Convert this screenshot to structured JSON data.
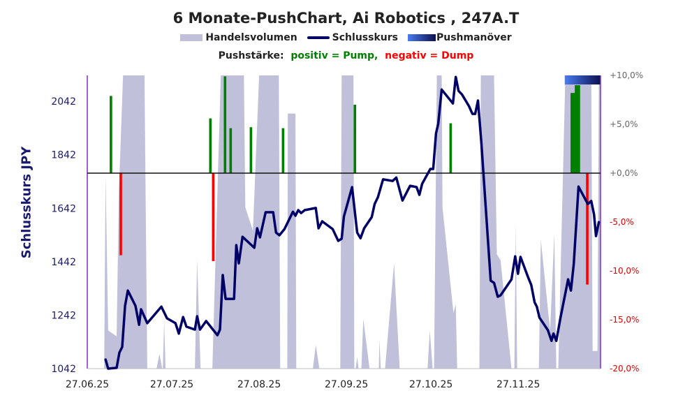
{
  "chart_data": {
    "type": "line",
    "title": "6 Monate-PushChart, Ai Robotics , 247A.T",
    "legend": {
      "volume": "Handelsvolumen",
      "close": "Schlusskurs",
      "push": "Pushmanöver"
    },
    "push_legend": {
      "label": "Pushstärke:",
      "positive": "positiv = Pump,",
      "negative": "negativ = Dump"
    },
    "ylabel": "Schlusskurs JPY",
    "x_unit": "days since 27.06.25",
    "xlim": [
      0,
      182.2
    ],
    "x_ticks": [
      {
        "day": 0,
        "label": "27.06.25"
      },
      {
        "day": 30,
        "label": "27.07.25"
      },
      {
        "day": 61,
        "label": "27.08.25"
      },
      {
        "day": 92,
        "label": "27.09.25"
      },
      {
        "day": 122,
        "label": "27.10.25"
      },
      {
        "day": 153,
        "label": "27.11.25"
      }
    ],
    "ylim_left": [
      1042,
      2139
    ],
    "y_ticks_left": [
      {
        "value": 1042,
        "label": "1042"
      },
      {
        "value": 1242,
        "label": "1242"
      },
      {
        "value": 1442,
        "label": "1442"
      },
      {
        "value": 1642,
        "label": "1642"
      },
      {
        "value": 1842,
        "label": "1842"
      },
      {
        "value": 2042,
        "label": "2042"
      }
    ],
    "ylim_right": [
      -20,
      10
    ],
    "y_ticks_right": [
      {
        "value": 10,
        "label": "+10,0%"
      },
      {
        "value": 5,
        "label": "+5,0%"
      },
      {
        "value": 0,
        "label": "+0,0%"
      },
      {
        "value": -5,
        "label": "-5,0%"
      },
      {
        "value": -10,
        "label": "-10,0%"
      },
      {
        "value": -15,
        "label": "-15,0%"
      },
      {
        "value": -20,
        "label": "-20,0%"
      }
    ],
    "colors": {
      "volume": "#c0c0da",
      "close": "#000066",
      "pump": "#008000",
      "dump": "#ff0000",
      "push_start": "#4a7cf0",
      "push_end": "#0c1050",
      "zero_line": "#111111",
      "frame": "#7b2fd0"
    },
    "close": [
      [
        6.5,
        1076
      ],
      [
        7.4,
        1042
      ],
      [
        10.4,
        1045
      ],
      [
        11.4,
        1102
      ],
      [
        12.4,
        1123
      ],
      [
        13.4,
        1277
      ],
      [
        14.4,
        1334
      ],
      [
        17.1,
        1277
      ],
      [
        18.4,
        1206
      ],
      [
        19.1,
        1264
      ],
      [
        21.3,
        1212
      ],
      [
        26.3,
        1274
      ],
      [
        28.3,
        1230
      ],
      [
        31.3,
        1212
      ],
      [
        32.5,
        1173
      ],
      [
        34.0,
        1235
      ],
      [
        35.2,
        1199
      ],
      [
        38.2,
        1188
      ],
      [
        39.0,
        1238
      ],
      [
        40.0,
        1188
      ],
      [
        42.2,
        1220
      ],
      [
        46.2,
        1167
      ],
      [
        47.1,
        1188
      ],
      [
        48.1,
        1392
      ],
      [
        49.1,
        1303
      ],
      [
        52.1,
        1303
      ],
      [
        52.9,
        1504
      ],
      [
        53.8,
        1436
      ],
      [
        55.1,
        1535
      ],
      [
        59.3,
        1494
      ],
      [
        60.3,
        1567
      ],
      [
        61.3,
        1533
      ],
      [
        63.3,
        1627
      ],
      [
        66.0,
        1627
      ],
      [
        67.0,
        1551
      ],
      [
        68.2,
        1541
      ],
      [
        70.0,
        1564
      ],
      [
        73.0,
        1629
      ],
      [
        73.9,
        1614
      ],
      [
        74.9,
        1635
      ],
      [
        75.9,
        1624
      ],
      [
        77.2,
        1635
      ],
      [
        81.1,
        1643
      ],
      [
        82.1,
        1567
      ],
      [
        83.4,
        1593
      ],
      [
        87.1,
        1564
      ],
      [
        89.1,
        1520
      ],
      [
        90.3,
        1528
      ],
      [
        91.1,
        1611
      ],
      [
        94.0,
        1721
      ],
      [
        95.8,
        1551
      ],
      [
        97.0,
        1530
      ],
      [
        98.3,
        1567
      ],
      [
        101.0,
        1609
      ],
      [
        102.0,
        1658
      ],
      [
        103.2,
        1684
      ],
      [
        105.0,
        1750
      ],
      [
        108.4,
        1744
      ],
      [
        109.7,
        1757
      ],
      [
        111.9,
        1671
      ],
      [
        114.6,
        1726
      ],
      [
        116.9,
        1721
      ],
      [
        117.9,
        1692
      ],
      [
        118.9,
        1734
      ],
      [
        121.8,
        1789
      ],
      [
        122.8,
        1789
      ],
      [
        123.8,
        1922
      ],
      [
        124.6,
        1958
      ],
      [
        125.8,
        2086
      ],
      [
        129.8,
        2034
      ],
      [
        130.8,
        2133
      ],
      [
        131.8,
        2081
      ],
      [
        133.0,
        2068
      ],
      [
        135.5,
        2024
      ],
      [
        136.7,
        1995
      ],
      [
        137.7,
        1995
      ],
      [
        138.7,
        2045
      ],
      [
        139.9,
        1885
      ],
      [
        143.2,
        1371
      ],
      [
        144.4,
        1363
      ],
      [
        145.7,
        1311
      ],
      [
        146.7,
        1316
      ],
      [
        150.6,
        1376
      ],
      [
        151.9,
        1462
      ],
      [
        152.9,
        1397
      ],
      [
        153.8,
        1460
      ],
      [
        156.6,
        1381
      ],
      [
        157.6,
        1355
      ],
      [
        158.8,
        1290
      ],
      [
        159.6,
        1274
      ],
      [
        160.5,
        1233
      ],
      [
        163.5,
        1186
      ],
      [
        164.8,
        1146
      ],
      [
        165.5,
        1173
      ],
      [
        166.5,
        1146
      ],
      [
        168.0,
        1233
      ],
      [
        170.7,
        1376
      ],
      [
        171.7,
        1334
      ],
      [
        172.7,
        1434
      ],
      [
        174.4,
        1723
      ],
      [
        177.7,
        1658
      ],
      [
        178.9,
        1669
      ],
      [
        179.9,
        1619
      ],
      [
        180.6,
        1538
      ],
      [
        181.6,
        1590
      ]
    ],
    "volume_relative": [
      [
        6.0,
        0
      ],
      [
        6.5,
        0.66
      ],
      [
        7.4,
        0.13
      ],
      [
        10.4,
        0.11
      ],
      [
        11.2,
        0.6
      ],
      [
        12.7,
        1
      ],
      [
        20.3,
        1
      ],
      [
        21.3,
        0
      ],
      [
        24.6,
        0
      ],
      [
        25.6,
        0.05
      ],
      [
        26.6,
        0
      ],
      [
        26.8,
        0
      ],
      [
        27.3,
        0.16
      ],
      [
        27.8,
        0
      ],
      [
        38.2,
        0
      ],
      [
        39.0,
        0.37
      ],
      [
        40.2,
        0
      ],
      [
        44.4,
        0
      ],
      [
        47.4,
        1
      ],
      [
        55.6,
        1
      ],
      [
        56.1,
        0.55
      ],
      [
        58.8,
        0.47
      ],
      [
        61.0,
        1
      ],
      [
        68.0,
        1
      ],
      [
        68.5,
        0
      ],
      [
        71.0,
        0
      ],
      [
        71.2,
        0.87
      ],
      [
        73.9,
        0.87
      ],
      [
        74.2,
        0
      ],
      [
        80.1,
        0
      ],
      [
        81.1,
        0.08
      ],
      [
        82.4,
        0
      ],
      [
        89.8,
        0
      ],
      [
        90.3,
        1
      ],
      [
        94.5,
        1
      ],
      [
        94.8,
        0
      ],
      [
        95.3,
        0
      ],
      [
        95.8,
        0.04
      ],
      [
        96.3,
        0
      ],
      [
        97.3,
        0
      ],
      [
        98.0,
        0.17
      ],
      [
        100.2,
        0
      ],
      [
        103.5,
        0
      ],
      [
        103.7,
        0.1
      ],
      [
        104.2,
        0
      ],
      [
        105.7,
        0
      ],
      [
        108.9,
        0.36
      ],
      [
        110.9,
        0
      ],
      [
        120.8,
        0
      ],
      [
        121.6,
        0.13
      ],
      [
        122.6,
        0
      ],
      [
        123.1,
        0
      ],
      [
        124.1,
        1
      ],
      [
        125.8,
        1
      ],
      [
        126.1,
        0.55
      ],
      [
        130.0,
        0.19
      ],
      [
        130.8,
        0.22
      ],
      [
        131.3,
        0
      ],
      [
        139.2,
        0
      ],
      [
        139.7,
        1
      ],
      [
        144.4,
        1
      ],
      [
        145.4,
        0.39
      ],
      [
        146.7,
        0.37
      ],
      [
        150.6,
        0
      ],
      [
        151.6,
        0
      ],
      [
        152.1,
        0.49
      ],
      [
        152.6,
        0
      ],
      [
        160.3,
        0
      ],
      [
        161.0,
        0.44
      ],
      [
        164.3,
        0.13
      ],
      [
        165.8,
        0.46
      ],
      [
        166.5,
        0
      ],
      [
        167.2,
        0
      ],
      [
        169.7,
        1
      ],
      [
        178.9,
        1
      ],
      [
        179.4,
        0.06
      ],
      [
        181.1,
        0.06
      ],
      [
        181.6,
        1
      ],
      [
        182.1,
        1
      ]
    ],
    "push_strength_pct": [
      [
        8.4,
        7.9
      ],
      [
        11.9,
        -8.4
      ],
      [
        43.7,
        5.6
      ],
      [
        44.7,
        -9.0
      ],
      [
        48.9,
        9.9
      ],
      [
        50.9,
        4.6
      ],
      [
        58.1,
        4.7
      ],
      [
        69.5,
        4.6
      ],
      [
        95.0,
        7.0
      ],
      [
        129.0,
        5.1
      ],
      [
        172.0,
        8.2
      ],
      [
        172.5,
        8.2
      ],
      [
        173.0,
        8.2
      ],
      [
        173.5,
        9.0
      ],
      [
        174.0,
        9.0
      ],
      [
        174.5,
        9.0
      ],
      [
        177.5,
        -11.4
      ]
    ],
    "push_maneuver_range": [
      169.5,
      182.2
    ]
  }
}
